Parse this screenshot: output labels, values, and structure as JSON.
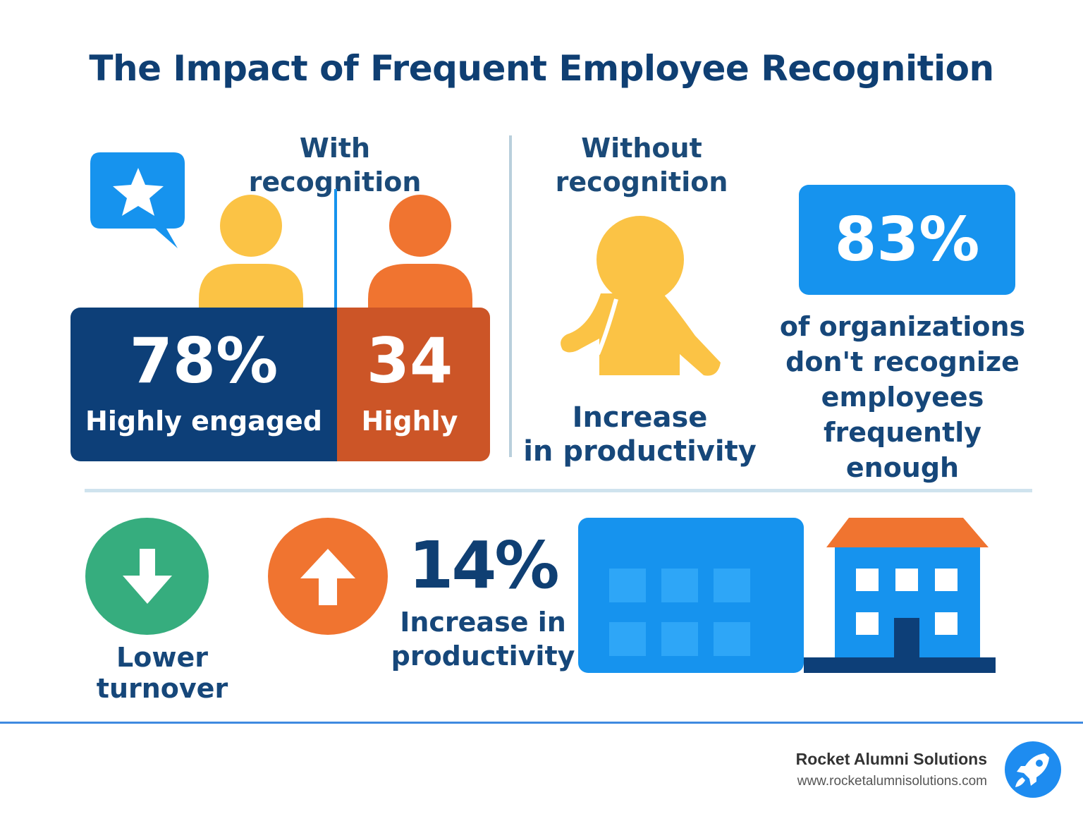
{
  "title": "The Impact of Frequent Employee Recognition",
  "with_section": {
    "heading": "With recognition",
    "engaged_value": "78%",
    "engaged_label": "Highly engaged",
    "highly_value": "34",
    "highly_label": "Highly"
  },
  "without_section": {
    "heading_line1": "Without",
    "heading_line2": "recognition",
    "productivity_line1": "Increase",
    "productivity_line2": "in productivity"
  },
  "organizations_stat": {
    "value": "83%",
    "line1": "of organizations",
    "line2": "don't recognize",
    "line3": "employees",
    "line4": "frequently enough"
  },
  "bottom": {
    "turnover_label": "Lower turnover",
    "productivity_value": "14%",
    "productivity_line1": "Increase in",
    "productivity_line2": "productivity"
  },
  "footer": {
    "brand": "Rocket Alumni Solutions",
    "url": "www.rocketalumnisolutions.com"
  },
  "icons": [
    "star-chat-icon",
    "person-icon",
    "person-icon",
    "person-icon",
    "arrow-down-icon",
    "arrow-up-icon",
    "building-icon",
    "house-icon",
    "rocket-icon"
  ],
  "colors": {
    "navy": "#0d3f78",
    "orange": "#f07430",
    "rust": "#cc5527",
    "yellow": "#fbc345",
    "blue": "#1693ee",
    "green": "#36ad7e"
  }
}
